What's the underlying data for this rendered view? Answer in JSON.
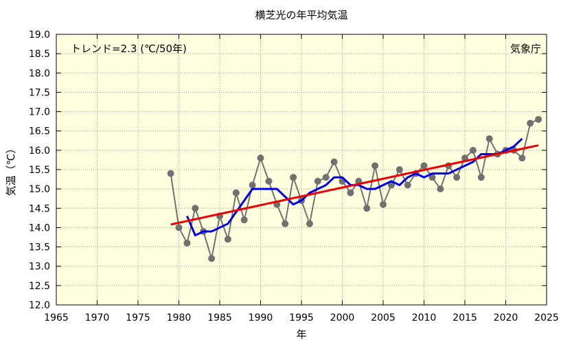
{
  "chart_data": {
    "type": "line",
    "title": "横芝光の年平均気温",
    "xlabel": "年",
    "ylabel": "気温（℃）",
    "trend_label": "トレンド=2.3 (℃/50年)",
    "source_label": "気象庁",
    "xlim": [
      1965,
      2025
    ],
    "ylim": [
      12.0,
      19.0
    ],
    "x_ticks": [
      "1965",
      "1970",
      "1975",
      "1980",
      "1985",
      "1990",
      "1995",
      "2000",
      "2005",
      "2010",
      "2015",
      "2020",
      "2025"
    ],
    "y_ticks": [
      "12.0",
      "12.5",
      "13.0",
      "13.5",
      "14.0",
      "14.5",
      "15.0",
      "15.5",
      "16.0",
      "16.5",
      "17.0",
      "17.5",
      "18.0",
      "18.5",
      "19.0"
    ],
    "grid": true,
    "colors": {
      "background": "#ffffe0",
      "annual": "#707070",
      "moving_avg": "#0000ee",
      "trend": "#ee0000",
      "grid": "#999999"
    },
    "series": [
      {
        "role": "annual",
        "x": [
          1979,
          1980,
          1981,
          1982,
          1983,
          1984,
          1985,
          1986,
          1987,
          1988,
          1989,
          1990,
          1991,
          1992,
          1993,
          1994,
          1995,
          1996,
          1997,
          1998,
          1999,
          2000,
          2001,
          2002,
          2003,
          2004,
          2005,
          2006,
          2007,
          2008,
          2009,
          2010,
          2011,
          2012,
          2013,
          2014,
          2015,
          2016,
          2017,
          2018,
          2019,
          2020,
          2021,
          2022,
          2023,
          2024
        ],
        "y": [
          15.4,
          14.0,
          13.6,
          14.5,
          13.9,
          13.2,
          14.3,
          13.7,
          14.9,
          14.2,
          15.1,
          15.8,
          15.2,
          14.6,
          14.1,
          15.3,
          14.7,
          14.1,
          15.2,
          15.3,
          15.7,
          15.2,
          14.9,
          15.2,
          14.5,
          15.6,
          14.6,
          15.1,
          15.5,
          15.1,
          15.4,
          15.6,
          15.3,
          15.0,
          15.6,
          15.3,
          15.8,
          16.0,
          15.3,
          16.3,
          15.9,
          16.0,
          16.0,
          15.8,
          16.7,
          16.8
        ]
      },
      {
        "role": "moving_average",
        "x": [
          1981,
          1982,
          1983,
          1984,
          1985,
          1986,
          1987,
          1988,
          1989,
          1990,
          1991,
          1992,
          1993,
          1994,
          1995,
          1996,
          1997,
          1998,
          1999,
          2000,
          2001,
          2002,
          2003,
          2004,
          2005,
          2006,
          2007,
          2008,
          2009,
          2010,
          2011,
          2012,
          2013,
          2014,
          2015,
          2016,
          2017,
          2018,
          2019,
          2020,
          2021,
          2022
        ],
        "y": [
          14.3,
          13.8,
          13.9,
          13.9,
          14.0,
          14.1,
          14.4,
          14.7,
          15.0,
          15.0,
          15.0,
          15.0,
          14.8,
          14.6,
          14.7,
          14.9,
          15.0,
          15.1,
          15.3,
          15.3,
          15.1,
          15.1,
          15.0,
          15.0,
          15.1,
          15.2,
          15.1,
          15.3,
          15.4,
          15.3,
          15.4,
          15.4,
          15.4,
          15.5,
          15.6,
          15.7,
          15.9,
          15.9,
          15.9,
          16.0,
          16.1,
          16.3
        ]
      },
      {
        "role": "trend",
        "x": [
          1979,
          2024
        ],
        "y": [
          14.08,
          16.13
        ]
      }
    ]
  }
}
